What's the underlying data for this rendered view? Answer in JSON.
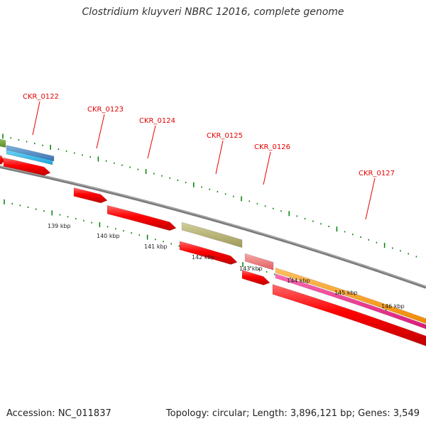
{
  "title": "Clostridium kluyveri NBRC 12016, complete genome",
  "footer": {
    "accession": "Accession: NC_011837",
    "stats": "Topology: circular; Length: 3,896,121 bp; Genes: 3,549"
  },
  "colors": {
    "backbone": "#7a7a7a",
    "tick": "#008000",
    "label": "#e60000",
    "gene_default": "#ff0000",
    "gene_olive": "#b5b070",
    "gene_pink": "#ee7777",
    "gene_orange": "#ff9900",
    "gene_magenta": "#ee2288",
    "gene_steel": "#4a86c0",
    "gene_cyan": "#2bb8ea",
    "gene_green": "#6a9a3a"
  },
  "gene_labels": [
    "CKR_0122",
    "CKR_0123",
    "CKR_0124",
    "CKR_0125",
    "CKR_0126",
    "CKR_0127"
  ],
  "scale_labels": [
    "139 kbp",
    "140 kbp",
    "141 kbp",
    "142 kbp",
    "143 kbp",
    "144 kbp",
    "145 kbp",
    "146 kbp"
  ]
}
